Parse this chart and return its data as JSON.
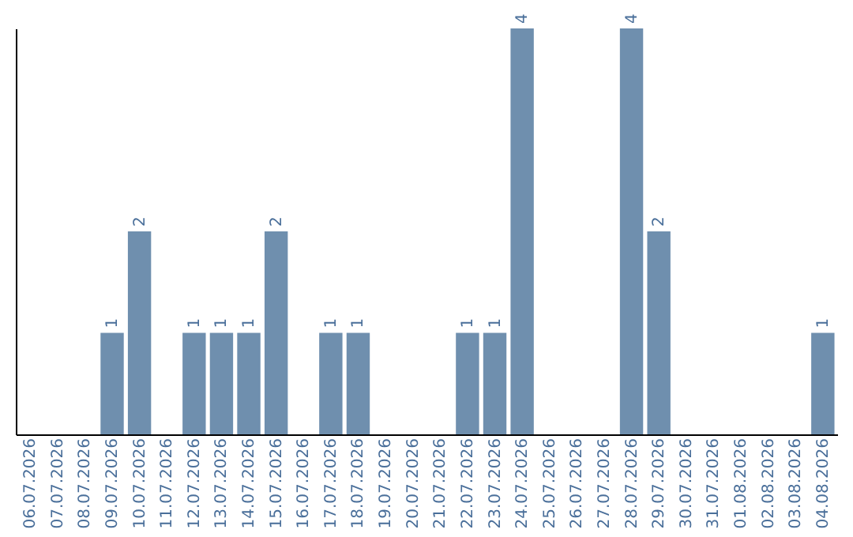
{
  "chart_data": {
    "type": "bar",
    "categories": [
      "06.07.2026",
      "07.07.2026",
      "08.07.2026",
      "09.07.2026",
      "10.07.2026",
      "11.07.2026",
      "12.07.2026",
      "13.07.2026",
      "14.07.2026",
      "15.07.2026",
      "16.07.2026",
      "17.07.2026",
      "18.07.2026",
      "19.07.2026",
      "20.07.2026",
      "21.07.2026",
      "22.07.2026",
      "23.07.2026",
      "24.07.2026",
      "25.07.2026",
      "26.07.2026",
      "27.07.2026",
      "28.07.2026",
      "29.07.2026",
      "30.07.2026",
      "31.07.2026",
      "01.08.2026",
      "02.08.2026",
      "03.08.2026",
      "04.08.2026"
    ],
    "values": [
      null,
      null,
      null,
      1,
      2,
      null,
      1,
      1,
      1,
      2,
      null,
      1,
      1,
      null,
      null,
      null,
      1,
      1,
      4,
      null,
      null,
      null,
      4,
      2,
      null,
      null,
      null,
      null,
      null,
      1
    ],
    "color": "#6f8fae",
    "ylim": [
      0,
      4
    ],
    "data_labels": true,
    "grid": false,
    "tick_labels": "x"
  }
}
